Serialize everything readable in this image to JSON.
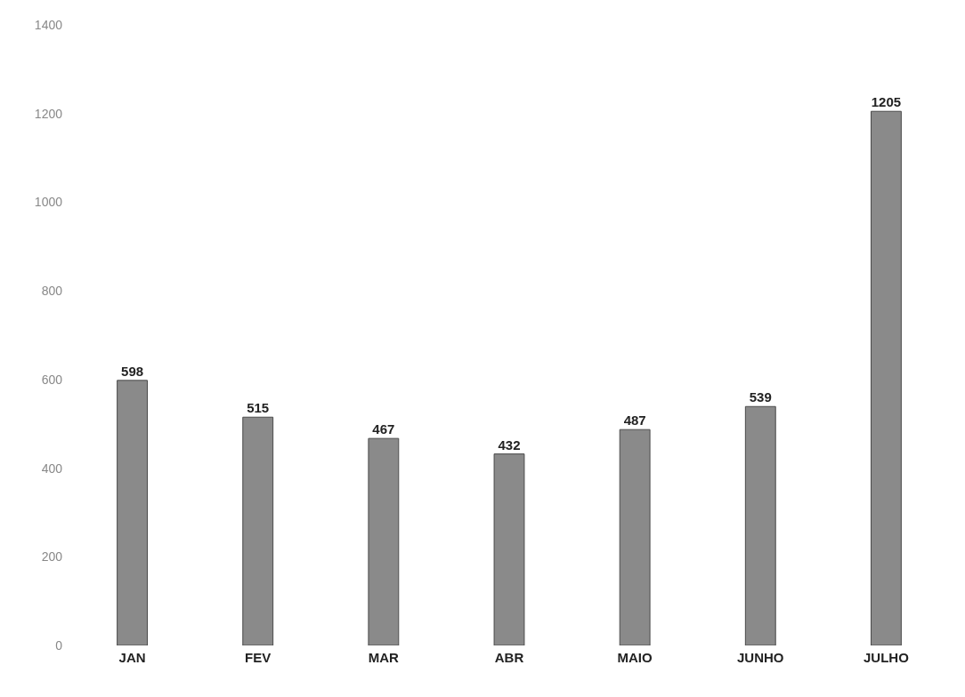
{
  "chart_data": {
    "type": "bar",
    "categories": [
      "JAN",
      "FEV",
      "MAR",
      "ABR",
      "MAIO",
      "JUNHO",
      "JULHO"
    ],
    "values": [
      598,
      515,
      467,
      432,
      487,
      539,
      1205
    ],
    "color": "#8a8a8a",
    "ylim": [
      0,
      1400
    ],
    "yticks": [
      0,
      200,
      400,
      600,
      800,
      1000,
      1200,
      1400
    ],
    "data_labels": true,
    "grid": false
  }
}
